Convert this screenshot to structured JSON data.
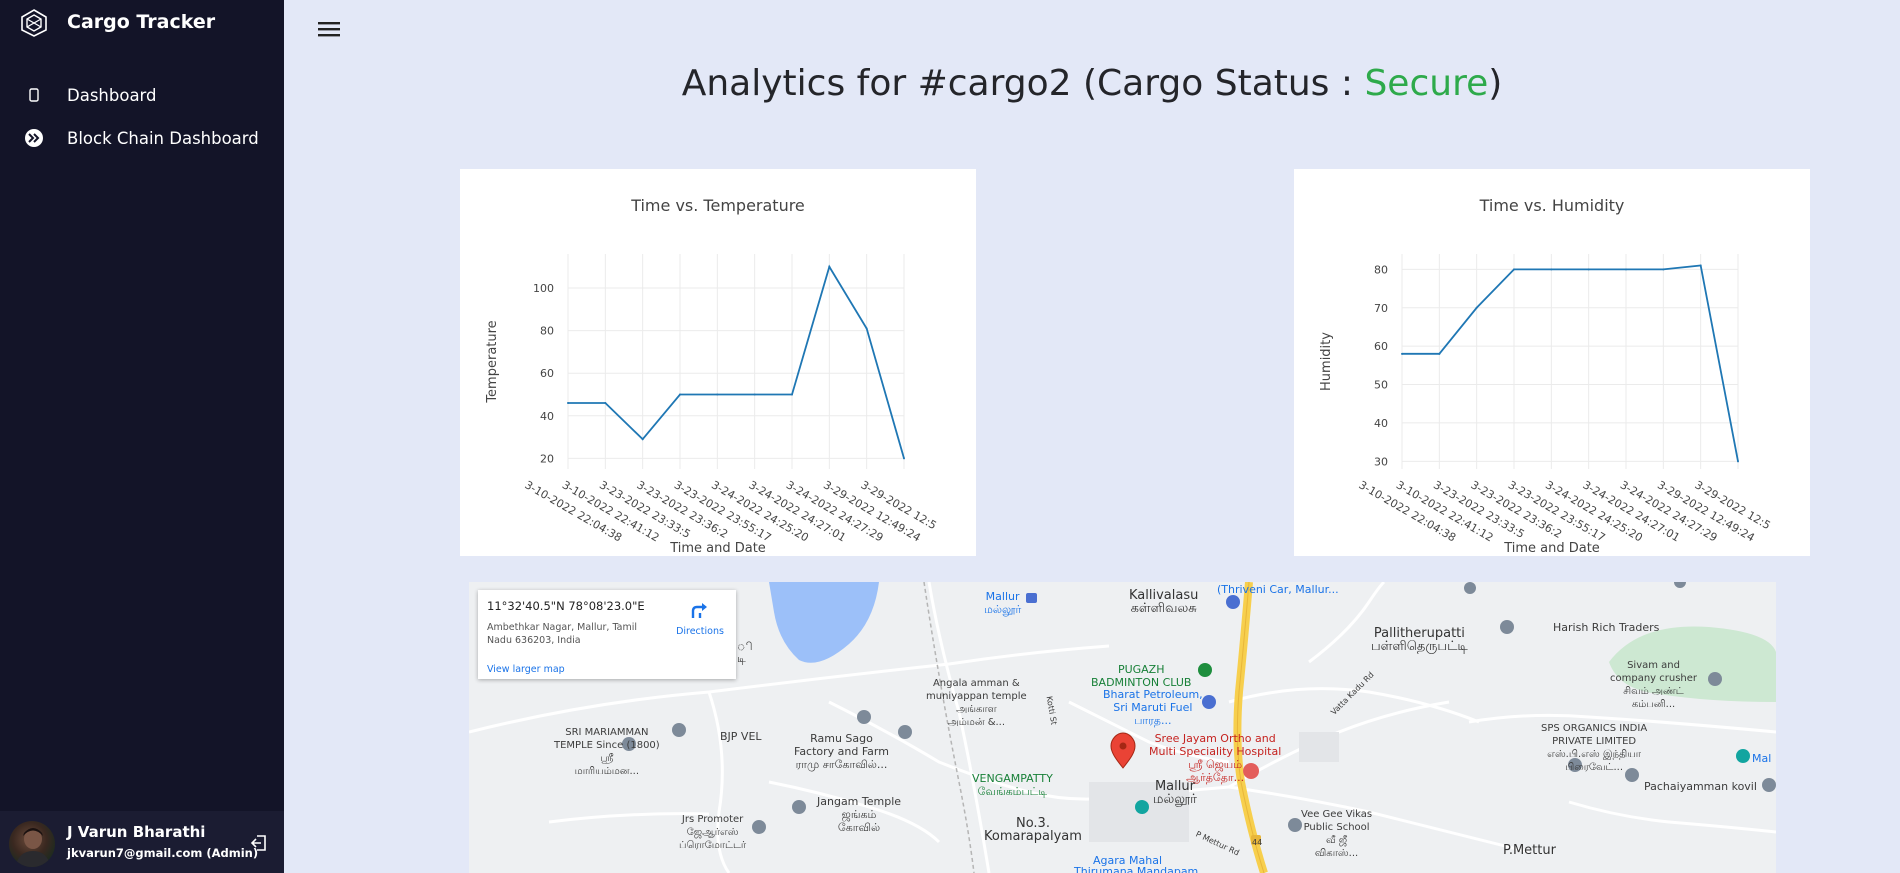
{
  "app": {
    "name": "Cargo Tracker"
  },
  "sidebar": {
    "items": [
      {
        "label": "Dashboard",
        "icon": "tablet-icon"
      },
      {
        "label": "Block Chain Dashboard",
        "icon": "chevrons-icon"
      }
    ]
  },
  "user": {
    "name": "J Varun Bharathi",
    "email": "jkvarun7@gmail.com (Admin)"
  },
  "page": {
    "title_prefix": "Analytics for #cargo2 (Cargo Status : ",
    "status": "Secure",
    "title_suffix": ")"
  },
  "colors": {
    "sidebar_bg": "#131428",
    "page_bg": "#e3e8f7",
    "secure": "#2eaa4b",
    "line": "#1f77b4"
  },
  "chart_data": [
    {
      "type": "line",
      "title": "Time vs. Temperature",
      "xlabel": "Time and Date",
      "ylabel": "Temperature",
      "categories": [
        "3-10-2022 22:04:38",
        "3-10-2022 22:41:12",
        "3-23-2022 23:33:5",
        "3-23-2022 23:36:2",
        "3-23-2022 23:55:17",
        "3-24-2022 24:25:20",
        "3-24-2022 24:27:01",
        "3-24-2022 24:27:29",
        "3-29-2022 12:49:24",
        "3-29-2022 12:5"
      ],
      "values": [
        46,
        46,
        29,
        50,
        50,
        50,
        50,
        110,
        81,
        20
      ],
      "yticks": [
        20,
        40,
        60,
        80,
        100
      ],
      "ylim": [
        15,
        116
      ],
      "grid": true
    },
    {
      "type": "line",
      "title": "Time vs. Humidity",
      "xlabel": "Time and Date",
      "ylabel": "Humidity",
      "categories": [
        "3-10-2022 22:04:38",
        "3-10-2022 22:41:12",
        "3-23-2022 23:33:5",
        "3-23-2022 23:36:2",
        "3-23-2022 23:55:17",
        "3-24-2022 24:25:20",
        "3-24-2022 24:27:01",
        "3-24-2022 24:27:29",
        "3-29-2022 12:49:24",
        "3-29-2022 12:5"
      ],
      "values": [
        58,
        58,
        70,
        80,
        80,
        80,
        80,
        80,
        81,
        30
      ],
      "yticks": [
        30,
        40,
        50,
        60,
        70,
        80
      ],
      "ylim": [
        28,
        84
      ],
      "grid": true
    }
  ],
  "map": {
    "coords": "11°32'40.5\"N 78°08'23.0\"E",
    "address": "Ambethkar Nagar, Mallur, Tamil Nadu 636203, India",
    "directions": "Directions",
    "view_larger": "View larger map",
    "labels": [
      {
        "text": "Mallur\nமல்லூர்",
        "style": "blue"
      },
      {
        "text": "Kallivalasu\nகள்ளிவலசு",
        "style": "big"
      },
      {
        "text": "(Thriveni Car, Mallur...",
        "style": "blue"
      },
      {
        "text": "Pallitherupatti\nபள்ளிதெருபட்டி",
        "style": "big"
      },
      {
        "text": "Harish Rich Traders",
        "style": ""
      },
      {
        "text": "PUGAZH\nBADMINTON CLUB",
        "style": "green"
      },
      {
        "text": "Bharat Petroleum,\nSri Maruti Fuel\nபாரத...",
        "style": "blue"
      },
      {
        "text": "Angala amman &\nmuniyappan temple\nஅங்காள\nஅம்மன் &...",
        "style": ""
      },
      {
        "text": "Sivam and\ncompany crusher\nசிவம் அண்ட்\nகம்பனி...",
        "style": ""
      },
      {
        "text": "SPS ORGANICS INDIA\nPRIVATE LIMITED\nஎஸ்.பி.எஸ் இந்தியா\nபிரைவேட்...",
        "style": ""
      },
      {
        "text": "SRI MARIAMMAN\nTEMPLE Since (1800)\nஸ்ரீ\nமாரியம்மன...",
        "style": ""
      },
      {
        "text": "BJP VEL",
        "style": ""
      },
      {
        "text": "Ramu Sago\nFactory and Farm\nராமு சாகோவில்...",
        "style": ""
      },
      {
        "text": "Sree Jayam Ortho and\nMulti Speciality Hospital\nஸ்ரீ ஜெயம்\nஆர்த்தோ...",
        "style": "red"
      },
      {
        "text": "VENGAMPATTY\nவேங்கம்பட்டி",
        "style": "green"
      },
      {
        "text": "Mallur\nமல்லூர்",
        "style": "big"
      },
      {
        "text": "Jangam Temple\nஜங்கம்\nகோவில்",
        "style": ""
      },
      {
        "text": "Jrs Promoter\nஜேஆர்எஸ்\nப்ரொமோட்டர்",
        "style": ""
      },
      {
        "text": "No.3.\nKomarapalyam",
        "style": "big"
      },
      {
        "text": "Vee Gee Vikas\nPublic School\nவீ ஜீ\nவிகாஸ்...",
        "style": ""
      },
      {
        "text": "Pachaiyamman kovil",
        "style": ""
      },
      {
        "text": "P.Mettur",
        "style": "big"
      },
      {
        "text": "Agara Mahal",
        "style": "blue"
      },
      {
        "text": "Thirumana Mandapam",
        "style": "blue"
      },
      {
        "text": "Kotti St",
        "style": ""
      },
      {
        "text": "Vatta Kadu Rd",
        "style": ""
      },
      {
        "text": "P Mettur Rd",
        "style": ""
      },
      {
        "text": "44",
        "style": ""
      },
      {
        "text": "Mal",
        "style": "blue"
      },
      {
        "text": "ி",
        "style": ""
      },
      {
        "text": "டி",
        "style": ""
      }
    ]
  }
}
